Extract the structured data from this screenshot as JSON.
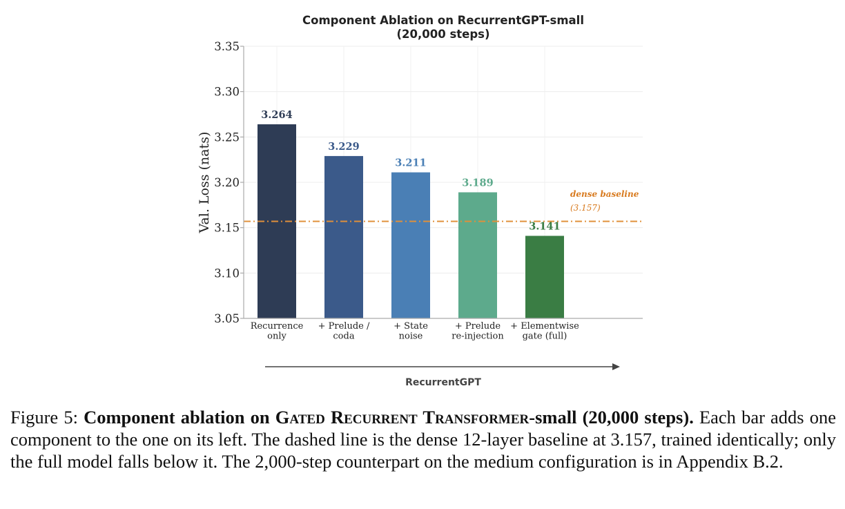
{
  "chart_data": {
    "type": "bar",
    "title_line1": "Component Ablation on RecurrentGPT-small",
    "title_line2": "(20,000 steps)",
    "ylabel": "Val. Loss (nats)",
    "xlabel": "RecurrentGPT",
    "ylim": [
      3.05,
      3.35
    ],
    "yticks": [
      "3.05",
      "3.10",
      "3.15",
      "3.20",
      "3.25",
      "3.30",
      "3.35"
    ],
    "ytick_values": [
      3.05,
      3.1,
      3.15,
      3.2,
      3.25,
      3.3,
      3.35
    ],
    "grid": true,
    "categories": [
      [
        "Recurrence",
        "only"
      ],
      [
        "+ Prelude /",
        "coda"
      ],
      [
        "+ State",
        "noise"
      ],
      [
        "+ Prelude",
        "re-injection"
      ],
      [
        "+ Elementwise",
        "gate (full)"
      ]
    ],
    "values": [
      3.264,
      3.229,
      3.211,
      3.189,
      3.141
    ],
    "value_labels": [
      "3.264",
      "3.229",
      "3.211",
      "3.189",
      "3.141"
    ],
    "colors": [
      "#2e3c55",
      "#3b5a8a",
      "#4a7fb5",
      "#5daa8c",
      "#3a7d44"
    ],
    "baseline": {
      "value": 3.157,
      "label": "dense baseline",
      "value_label": "(3.157)",
      "color": "#e0903a",
      "label_color": "#d87a1e"
    }
  },
  "caption": {
    "figure_label": "Figure 5:",
    "bold_prefix": "Component ablation on",
    "bold_g": "G",
    "bold_ated": "ATED",
    "bold_r": "R",
    "bold_ecurrent": "ECURRENT",
    "bold_t": "T",
    "bold_ransformer": "RANSFORMER",
    "bold_suffix": "-small (20,000 steps).",
    "body": "Each bar adds one component to the one on its left. The dashed line is the dense 12-layer baseline at 3.157, trained identically; only the full model falls below it. The 2,000-step counterpart on the medium configuration is in Appendix B.2."
  }
}
